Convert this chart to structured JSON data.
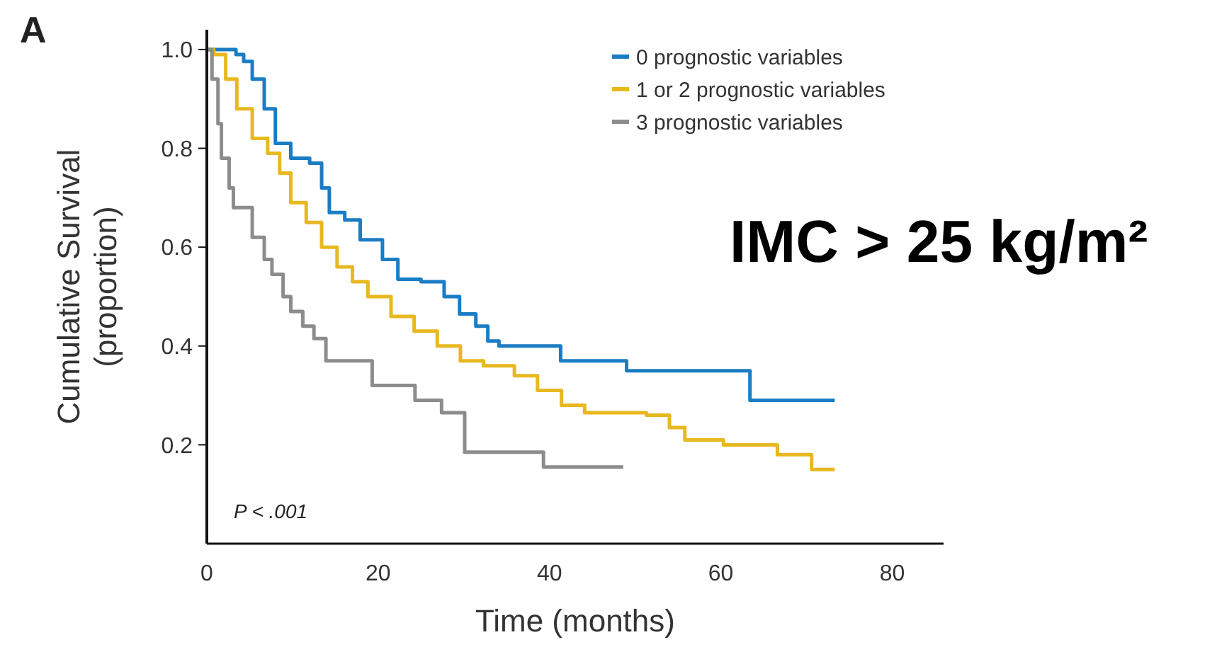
{
  "chart_data": {
    "type": "step",
    "xlabel": "Time (months)",
    "ylabel": "Cumulative Survival\n(proportion)",
    "xlim": [
      0,
      86
    ],
    "ylim": [
      0,
      1.04
    ],
    "xticks": [
      0,
      20,
      40,
      60,
      80
    ],
    "yticks": [
      {
        "value": 0.2,
        "label": "0.2"
      },
      {
        "value": 0.4,
        "label": "0.4"
      },
      {
        "value": 0.6,
        "label": "0.6"
      },
      {
        "value": 0.8,
        "label": "0.8"
      },
      {
        "value": 1.0,
        "label": "1.0"
      }
    ],
    "grid": false,
    "legend": "top right",
    "line_style": "solid",
    "annotations": [
      "A",
      "IMC > 25 kg/m²",
      "P < .001"
    ],
    "series": [
      {
        "name": "0 prognostic variables",
        "color": "#1a7dc4",
        "x": [
          0,
          3.4,
          4.3,
          5.3,
          6.7,
          8,
          9.8,
          12,
          13.4,
          14.3,
          16.1,
          17.9,
          20.5,
          22.3,
          25,
          27.7,
          29.5,
          31.4,
          32.8,
          34.1,
          41.3,
          49,
          63.4,
          73.3
        ],
        "values": [
          1.0,
          0.99,
          0.976,
          0.94,
          0.88,
          0.81,
          0.78,
          0.77,
          0.72,
          0.67,
          0.655,
          0.615,
          0.575,
          0.535,
          0.53,
          0.5,
          0.465,
          0.44,
          0.41,
          0.4,
          0.37,
          0.35,
          0.29,
          0.29
        ]
      },
      {
        "name": "1 or 2 prognostic variables",
        "color": "#e8b820",
        "x": [
          0,
          0.8,
          2.2,
          3.5,
          5.3,
          7.1,
          8.5,
          9.8,
          11.6,
          13.4,
          15.2,
          17,
          18.8,
          21.5,
          24.2,
          26.9,
          29.6,
          32.3,
          35.9,
          38.6,
          41.4,
          44.1,
          51.3,
          54,
          55.8,
          60.3,
          66.6,
          70.6,
          73.3
        ],
        "values": [
          1.0,
          0.99,
          0.94,
          0.88,
          0.82,
          0.79,
          0.75,
          0.69,
          0.65,
          0.6,
          0.56,
          0.53,
          0.5,
          0.46,
          0.43,
          0.4,
          0.37,
          0.36,
          0.34,
          0.31,
          0.28,
          0.265,
          0.26,
          0.235,
          0.21,
          0.2,
          0.18,
          0.15,
          0.15
        ]
      },
      {
        "name": "3 prognostic variables",
        "color": "#8c8c8c",
        "x": [
          0,
          0.6,
          1.3,
          1.7,
          2.6,
          3.1,
          5.3,
          6.7,
          7.6,
          8.9,
          9.8,
          11.2,
          12.5,
          13.9,
          19.3,
          24.3,
          27.4,
          30.1,
          39.3,
          48.6
        ],
        "values": [
          1.0,
          0.94,
          0.85,
          0.78,
          0.72,
          0.68,
          0.62,
          0.575,
          0.545,
          0.5,
          0.47,
          0.44,
          0.415,
          0.37,
          0.32,
          0.29,
          0.265,
          0.185,
          0.155,
          0.155
        ]
      }
    ]
  }
}
